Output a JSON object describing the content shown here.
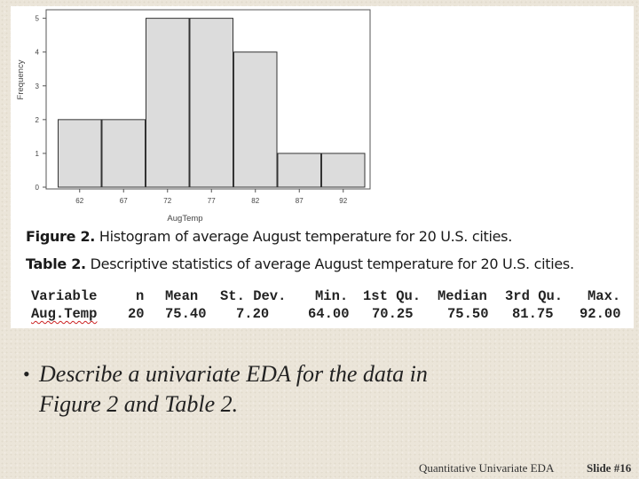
{
  "chart_data": {
    "type": "bar",
    "categories": [
      "62",
      "67",
      "72",
      "77",
      "82",
      "87",
      "92"
    ],
    "values": [
      2,
      2,
      5,
      5,
      4,
      1,
      1
    ],
    "xlabel": "AugTemp",
    "ylabel": "Frequency",
    "yticks": [
      "0",
      "1",
      "2",
      "3",
      "4",
      "5"
    ],
    "ylim": [
      0,
      5.2
    ],
    "grid": false,
    "bar_color": "#dcdcdc",
    "bar_edge_color": "#333333"
  },
  "captions": {
    "figure_label": "Figure 2.",
    "figure_text": "Histogram of average August temperature for 20 U.S. cities.",
    "table_label": "Table 2.",
    "table_text": "Descriptive statistics of average August temperature for 20 U.S. cities."
  },
  "stats_table": {
    "headers": [
      "Variable",
      "n",
      "Mean",
      "St. Dev.",
      "Min.",
      "1st Qu.",
      "Median",
      "3rd Qu.",
      "Max."
    ],
    "values": [
      "Aug.Temp",
      "20",
      "75.40",
      "7.20",
      "64.00",
      "70.25",
      "75.50",
      "81.75",
      "92.00"
    ]
  },
  "bullet": {
    "line1": "Describe a univariate EDA for the data in",
    "line2": "Figure 2 and Table 2."
  },
  "footer": {
    "title": "Quantitative Univariate EDA",
    "slide": "Slide #16"
  }
}
